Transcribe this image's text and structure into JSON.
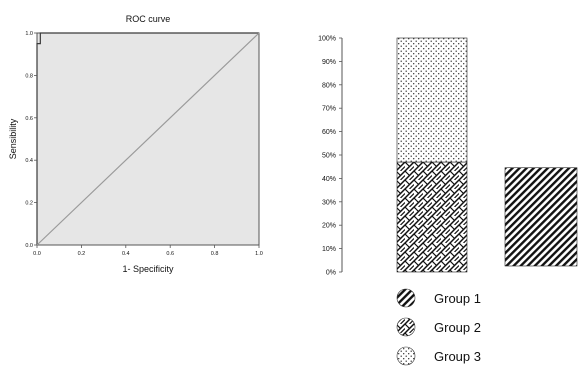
{
  "colors": {
    "plot_background": "#e6e6e6",
    "roc_line": "#3a3a3a",
    "reference_line": "#9a9a9a",
    "pattern_ink": "#111111"
  },
  "chart_data": [
    {
      "type": "line",
      "title": "ROC curve",
      "xlabel": "1- Specificity",
      "ylabel": "Sensibility",
      "xlim": [
        0,
        1
      ],
      "ylim": [
        0,
        1
      ],
      "x_ticks": [
        "0.0",
        "0.2",
        "0.4",
        "0.6",
        "0.8",
        "1.0"
      ],
      "y_ticks": [
        "0.0",
        "0.2",
        "0.4",
        "0.6",
        "0.8",
        "1.0"
      ],
      "grid": false,
      "series": [
        {
          "x": [
            0,
            0,
            0.015,
            0.015,
            1
          ],
          "y": [
            0,
            0.95,
            0.95,
            1,
            1
          ]
        },
        {
          "x": [
            0,
            1
          ],
          "y": [
            0,
            1
          ]
        }
      ]
    },
    {
      "type": "bar",
      "stacked": true,
      "title": "",
      "xlabel": "",
      "ylabel": "",
      "ylim": [
        0,
        100
      ],
      "y_ticks": [
        "0%",
        "10%",
        "20%",
        "30%",
        "40%",
        "50%",
        "60%",
        "70%",
        "80%",
        "90%",
        "100%"
      ],
      "categories": [
        "",
        ""
      ],
      "series": [
        {
          "name": "Group 1",
          "pattern": "diagonal",
          "values": [
            0,
            42
          ]
        },
        {
          "name": "Group 2",
          "pattern": "crosshatch",
          "values": [
            47,
            0
          ]
        },
        {
          "name": "Group 3",
          "pattern": "dots",
          "values": [
            53,
            0
          ]
        }
      ],
      "legend": {
        "position": "bottom",
        "items": [
          {
            "label": "Group 1",
            "pattern": "diagonal"
          },
          {
            "label": "Group 2",
            "pattern": "crosshatch"
          },
          {
            "label": "Group 3",
            "pattern": "dots"
          }
        ]
      }
    }
  ]
}
